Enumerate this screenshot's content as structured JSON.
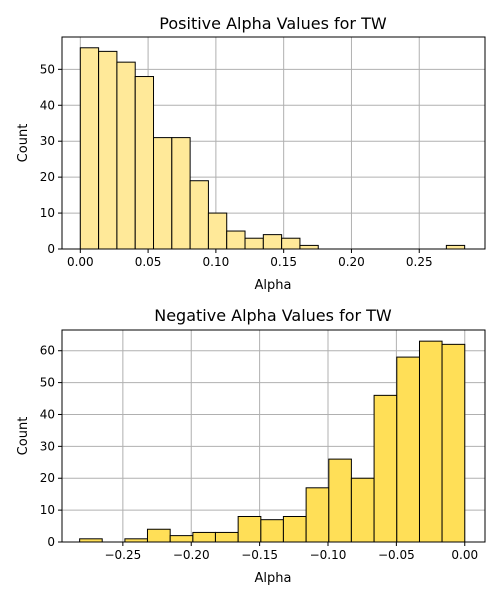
{
  "chart_data": [
    {
      "type": "bar",
      "title": "Positive Alpha Values for TW",
      "xlabel": "Alpha",
      "ylabel": "Count",
      "xlim": [
        -0.0135,
        0.2985
      ],
      "ylim": [
        0,
        59
      ],
      "xticks": [
        0.0,
        0.05,
        0.1,
        0.15,
        0.2,
        0.25
      ],
      "xtick_labels": [
        "0.00",
        "0.05",
        "0.10",
        "0.15",
        "0.20",
        "0.25"
      ],
      "yticks": [
        0,
        10,
        20,
        30,
        40,
        50
      ],
      "ytick_labels": [
        "0",
        "10",
        "20",
        "30",
        "40",
        "50"
      ],
      "grid": true,
      "bar_color": "#ffe999",
      "bins": [
        {
          "x0": 0.0,
          "x1": 0.0135,
          "count": 56
        },
        {
          "x0": 0.0135,
          "x1": 0.027,
          "count": 55
        },
        {
          "x0": 0.027,
          "x1": 0.0405,
          "count": 52
        },
        {
          "x0": 0.0405,
          "x1": 0.054,
          "count": 48
        },
        {
          "x0": 0.054,
          "x1": 0.0675,
          "count": 31
        },
        {
          "x0": 0.0675,
          "x1": 0.081,
          "count": 31
        },
        {
          "x0": 0.081,
          "x1": 0.0945,
          "count": 19
        },
        {
          "x0": 0.0945,
          "x1": 0.108,
          "count": 10
        },
        {
          "x0": 0.108,
          "x1": 0.1215,
          "count": 5
        },
        {
          "x0": 0.1215,
          "x1": 0.135,
          "count": 3
        },
        {
          "x0": 0.135,
          "x1": 0.1485,
          "count": 4
        },
        {
          "x0": 0.1485,
          "x1": 0.162,
          "count": 3
        },
        {
          "x0": 0.162,
          "x1": 0.1755,
          "count": 1
        },
        {
          "x0": 0.1755,
          "x1": 0.189,
          "count": 0
        },
        {
          "x0": 0.189,
          "x1": 0.2025,
          "count": 0
        },
        {
          "x0": 0.2025,
          "x1": 0.216,
          "count": 0
        },
        {
          "x0": 0.216,
          "x1": 0.2295,
          "count": 0
        },
        {
          "x0": 0.2295,
          "x1": 0.243,
          "count": 0
        },
        {
          "x0": 0.243,
          "x1": 0.2565,
          "count": 0
        },
        {
          "x0": 0.2565,
          "x1": 0.27,
          "count": 0
        },
        {
          "x0": 0.27,
          "x1": 0.2835,
          "count": 1
        }
      ]
    },
    {
      "type": "bar",
      "title": "Negative Alpha Values for TW",
      "xlabel": "Alpha",
      "ylabel": "Count",
      "xlim": [
        -0.2945,
        0.0148
      ],
      "ylim": [
        0,
        66.5
      ],
      "xticks": [
        -0.25,
        -0.2,
        -0.15,
        -0.1,
        -0.05,
        0.0
      ],
      "xtick_labels": [
        "−0.25",
        "−0.20",
        "−0.15",
        "−0.10",
        "−0.05",
        "0.00"
      ],
      "yticks": [
        0,
        10,
        20,
        30,
        40,
        50,
        60
      ],
      "ytick_labels": [
        "0",
        "10",
        "20",
        "30",
        "40",
        "50",
        "60"
      ],
      "grid": true,
      "bar_color": "#ffdf57",
      "bins": [
        {
          "x0": -0.2816,
          "x1": -0.2651,
          "count": 1
        },
        {
          "x0": -0.2651,
          "x1": -0.2485,
          "count": 0
        },
        {
          "x0": -0.2485,
          "x1": -0.232,
          "count": 1
        },
        {
          "x0": -0.232,
          "x1": -0.2154,
          "count": 4
        },
        {
          "x0": -0.2154,
          "x1": -0.1988,
          "count": 2
        },
        {
          "x0": -0.1988,
          "x1": -0.1823,
          "count": 3
        },
        {
          "x0": -0.1823,
          "x1": -0.1657,
          "count": 3
        },
        {
          "x0": -0.1657,
          "x1": -0.1491,
          "count": 8
        },
        {
          "x0": -0.1491,
          "x1": -0.1326,
          "count": 7
        },
        {
          "x0": -0.1326,
          "x1": -0.116,
          "count": 8
        },
        {
          "x0": -0.116,
          "x1": -0.0994,
          "count": 17
        },
        {
          "x0": -0.0994,
          "x1": -0.0829,
          "count": 26
        },
        {
          "x0": -0.0829,
          "x1": -0.0663,
          "count": 20
        },
        {
          "x0": -0.0663,
          "x1": -0.0497,
          "count": 46
        },
        {
          "x0": -0.0497,
          "x1": -0.0331,
          "count": 58
        },
        {
          "x0": -0.0331,
          "x1": -0.0166,
          "count": 63
        },
        {
          "x0": -0.0166,
          "x1": 0.0,
          "count": 62
        }
      ]
    }
  ]
}
